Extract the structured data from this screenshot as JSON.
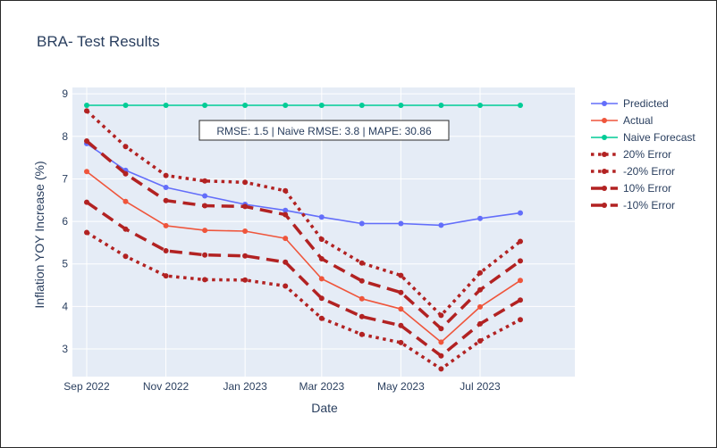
{
  "chart_data": {
    "type": "line",
    "title": "BRA- Test Results",
    "xlabel": "Date",
    "ylabel": "Inflation YOY Increase (%)",
    "annotation": "RMSE: 1.5 | Naive RMSE: 3.8 | MAPE: 30.86",
    "x": [
      "2022-09-01",
      "2022-10-01",
      "2022-11-01",
      "2022-12-01",
      "2023-01-01",
      "2023-02-01",
      "2023-03-01",
      "2023-04-01",
      "2023-05-01",
      "2023-06-01",
      "2023-07-01",
      "2023-08-01"
    ],
    "x_ticks": [
      {
        "date": "2022-09-01",
        "label": "Sep 2022"
      },
      {
        "date": "2022-11-01",
        "label": "Nov 2022"
      },
      {
        "date": "2023-01-01",
        "label": "Jan 2023"
      },
      {
        "date": "2023-03-01",
        "label": "Mar 2023"
      },
      {
        "date": "2023-05-01",
        "label": "May 2023"
      },
      {
        "date": "2023-07-01",
        "label": "Jul 2023"
      }
    ],
    "y_ticks": [
      3,
      4,
      5,
      6,
      7,
      8,
      9
    ],
    "ylim": [
      2.35,
      9.15
    ],
    "xlim": [
      "2022-08-21",
      "2023-09-12"
    ],
    "grid": true,
    "legend_position": "right",
    "series": [
      {
        "name": "Predicted",
        "color": "#636efa",
        "dash": "solid",
        "width": 1.6,
        "values": [
          7.83,
          7.2,
          6.8,
          6.6,
          6.4,
          6.26,
          6.1,
          5.95,
          5.95,
          5.91,
          6.07,
          6.2
        ]
      },
      {
        "name": "Actual",
        "color": "#ef553b",
        "dash": "solid",
        "width": 1.6,
        "values": [
          7.17,
          6.47,
          5.9,
          5.79,
          5.77,
          5.6,
          4.65,
          4.18,
          3.94,
          3.16,
          3.99,
          4.61
        ]
      },
      {
        "name": "Naive Forecast",
        "color": "#00cc96",
        "dash": "solid",
        "width": 1.6,
        "values": [
          8.73,
          8.73,
          8.73,
          8.73,
          8.73,
          8.73,
          8.73,
          8.73,
          8.73,
          8.73,
          8.73,
          8.73
        ]
      },
      {
        "name": "20% Error",
        "color": "#b22222",
        "dash": "dot",
        "width": 3.5,
        "values": [
          8.6,
          7.76,
          7.08,
          6.95,
          6.92,
          6.72,
          5.58,
          5.02,
          4.73,
          3.79,
          4.79,
          5.53
        ]
      },
      {
        "name": "-20% Error",
        "color": "#b22222",
        "dash": "dot",
        "width": 3.5,
        "values": [
          5.74,
          5.18,
          4.72,
          4.63,
          4.62,
          4.48,
          3.72,
          3.34,
          3.15,
          2.53,
          3.19,
          3.69
        ]
      },
      {
        "name": "10% Error",
        "color": "#b22222",
        "dash": "dash",
        "width": 3.5,
        "values": [
          7.89,
          7.12,
          6.49,
          6.37,
          6.35,
          6.16,
          5.12,
          4.6,
          4.33,
          3.48,
          4.39,
          5.07
        ]
      },
      {
        "name": "-10% Error",
        "color": "#b22222",
        "dash": "dash",
        "width": 3.5,
        "values": [
          6.45,
          5.82,
          5.31,
          5.21,
          5.19,
          5.04,
          4.19,
          3.76,
          3.55,
          2.84,
          3.59,
          4.15
        ]
      }
    ]
  }
}
